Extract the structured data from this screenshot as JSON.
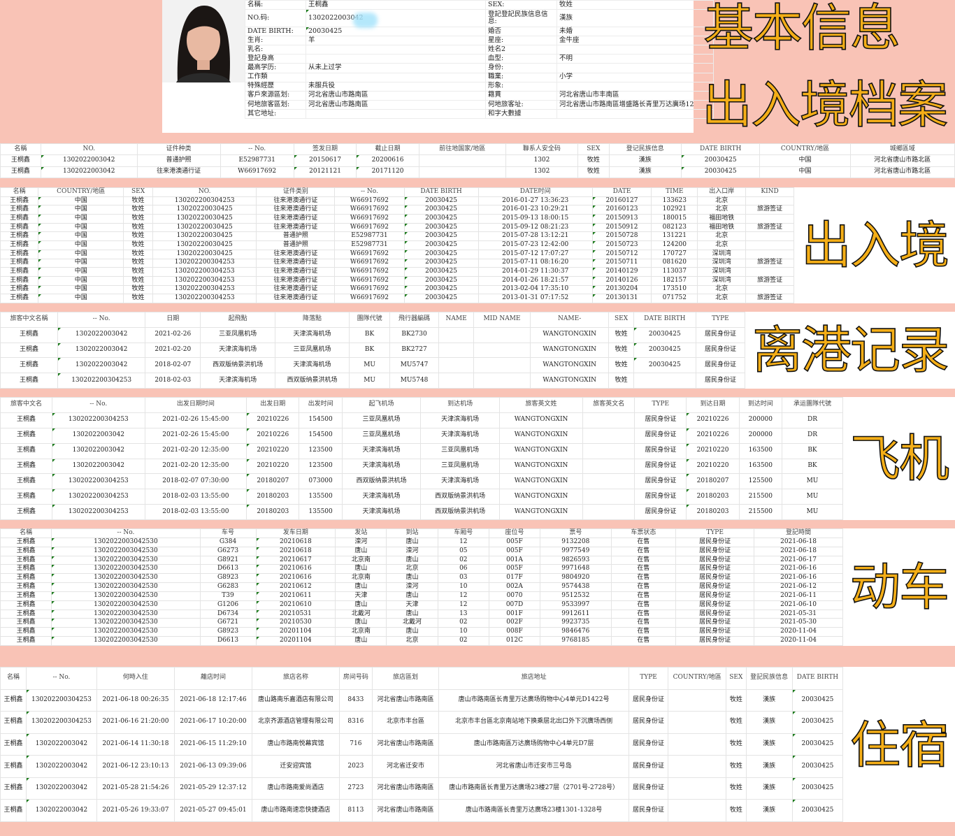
{
  "basic_info": {
    "title": "基本信息",
    "rows": [
      [
        "名稱:",
        "王桐鑫",
        "SEX:",
        "牧姓"
      ],
      [
        "NO.码:",
        "1302022003042",
        "登記登記民族信息信息:",
        "漢族"
      ],
      [
        "DATE BIRTH:",
        "20030425",
        "婚否",
        "未婚"
      ],
      [
        "生肖:",
        "羊",
        "星座:",
        "金牛座"
      ],
      [
        "乳名:",
        "",
        "姓名2",
        ""
      ],
      [
        "登記身高",
        "",
        "血型:",
        "不明"
      ],
      [
        "最高学历:",
        "从未上过学",
        "身份:",
        ""
      ],
      [
        "工作類",
        "",
        "職業:",
        "小学"
      ],
      [
        "特殊經歷",
        "未服兵役",
        "形象:",
        ""
      ],
      [
        "客戶來源區划:",
        "河北省唐山市路南區",
        "籍貫",
        "河北省唐山市丰南區"
      ],
      [
        "何地旅客區划:",
        "河北省唐山市路南區",
        "何地旅客址:",
        "河北省唐山市路南區增盛路长青里万达廣场12"
      ],
      [
        "其它地址:",
        "",
        "和字大數據",
        ""
      ]
    ]
  },
  "sections": {
    "entry_archive": {
      "title": "出入境档案",
      "headers": [
        "名稱",
        "NO.",
        "证件种类",
        "-- No.",
        "签发日期",
        "截止日期",
        "前往地国家/地區",
        "聯系人安全码",
        "SEX",
        "登记民族信息",
        "DATE BIRTH",
        "COUNTRY/地區",
        "城鄉區域"
      ],
      "rows": [
        [
          "王桐鑫",
          "1302022003042",
          "普通护照",
          "E52987731",
          "20150617",
          "20200616",
          "",
          "1302",
          "牧姓",
          "漢族",
          "20030425",
          "中国",
          "河北省唐山市路北區"
        ],
        [
          "王桐鑫",
          "1302022003042",
          "往来港澳通行证",
          "W66917692",
          "20121121",
          "20171120",
          "",
          "1302",
          "牧姓",
          "漢族",
          "20030425",
          "中国",
          "河北省唐山市路北區"
        ]
      ]
    },
    "border_crossing": {
      "title": "出入境",
      "headers": [
        "名稱",
        "COUNTRY/地區",
        "SEX",
        "NO.",
        "证件类别",
        "-- No.",
        "DATE BIRTH",
        "DATE时间",
        "DATE",
        "TIME",
        "出入口岸",
        "KIND"
      ],
      "rows": [
        [
          "王桐鑫",
          "中国",
          "牧姓",
          "130202200304253",
          "往来港澳通行证",
          "W66917692",
          "20030425",
          "2016-01-27 13:36:23",
          "20160127",
          "133623",
          "北京",
          ""
        ],
        [
          "王桐鑫",
          "中国",
          "牧姓",
          "13020220030425",
          "往来港澳通行证",
          "W66917692",
          "20030425",
          "2016-01-23 10:29:21",
          "20160123",
          "102921",
          "北京",
          "旅游签证"
        ],
        [
          "王桐鑫",
          "中国",
          "牧姓",
          "13020220030425",
          "往来港澳通行证",
          "W66917692",
          "20030425",
          "2015-09-13 18:00:15",
          "20150913",
          "180015",
          "福田地铁",
          ""
        ],
        [
          "王桐鑫",
          "中国",
          "牧姓",
          "13020220030425",
          "往来港澳通行证",
          "W66917692",
          "20030425",
          "2015-09-12 08:21:23",
          "20150912",
          "082123",
          "福田地铁",
          "旅游签证"
        ],
        [
          "王桐鑫",
          "中国",
          "牧姓",
          "13020220030425",
          "普通护照",
          "E52987731",
          "20030425",
          "2015-07-28 13:12:21",
          "20150728",
          "131221",
          "北京",
          ""
        ],
        [
          "王桐鑫",
          "中国",
          "牧姓",
          "13020220030425",
          "普通护照",
          "E52987731",
          "20030425",
          "2015-07-23 12:42:00",
          "20150723",
          "124200",
          "北京",
          ""
        ],
        [
          "王桐鑫",
          "中国",
          "牧姓",
          "13020220030425",
          "往来港澳通行证",
          "W66917692",
          "20030425",
          "2015-07-12 17:07:27",
          "20150712",
          "170727",
          "深圳湾",
          ""
        ],
        [
          "王桐鑫",
          "中国",
          "牧姓",
          "130202200304253",
          "往来港澳通行证",
          "W66917692",
          "20030425",
          "2015-07-11 08:16:20",
          "20150711",
          "081620",
          "深圳湾",
          "旅游签证"
        ],
        [
          "王桐鑫",
          "中国",
          "牧姓",
          "130202200304253",
          "往来港澳通行证",
          "W66917692",
          "20030425",
          "2014-01-29 11:30:37",
          "20140129",
          "113037",
          "深圳湾",
          ""
        ],
        [
          "王桐鑫",
          "中国",
          "牧姓",
          "130202200304253",
          "往来港澳通行证",
          "W66917692",
          "20030425",
          "2014-01-26 18:21:57",
          "20140126",
          "182157",
          "深圳湾",
          "旅游签证"
        ],
        [
          "王桐鑫",
          "中国",
          "牧姓",
          "130202200304253",
          "往来港澳通行证",
          "W66917692",
          "20030425",
          "2013-02-04 17:35:10",
          "20130204",
          "173510",
          "北京",
          ""
        ],
        [
          "王桐鑫",
          "中国",
          "牧姓",
          "130202200304253",
          "往来港澳通行证",
          "W66917692",
          "20030425",
          "2013-01-31 07:17:52",
          "20130131",
          "071752",
          "北京",
          "旅游签证"
        ]
      ]
    },
    "departures": {
      "title": "离港记录",
      "headers": [
        "旅客中文名稱",
        "-- No.",
        "日期",
        "起飛點",
        "降落點",
        "團隊代號",
        "飛行器編碼",
        "NAME",
        "MID NAME",
        "NAME-",
        "SEX",
        "DATE BIRTH",
        "TYPE"
      ],
      "rows": [
        [
          "王桐鑫",
          "1302022003042",
          "2021-02-26",
          "三亚凤凰机场",
          "天津滨海机场",
          "BK",
          "BK2730",
          "",
          "",
          "WANGTONGXIN",
          "牧姓",
          "20030425",
          "居民身份证"
        ],
        [
          "王桐鑫",
          "1302022003042",
          "2021-02-20",
          "天津滨海机场",
          "三亚凤凰机场",
          "BK",
          "BK2727",
          "",
          "",
          "WANGTONGXIN",
          "牧姓",
          "20030425",
          "居民身份证"
        ],
        [
          "王桐鑫",
          "1302022003042",
          "2018-02-07",
          "西双版纳景洪机场",
          "天津滨海机场",
          "MU",
          "MU5747",
          "",
          "",
          "WANGTONGXIN",
          "牧姓",
          "20030425",
          "居民身份证"
        ],
        [
          "王桐鑫",
          "130202200304253",
          "2018-02-03",
          "天津滨海机场",
          "西双版纳景洪机场",
          "MU",
          "MU5748",
          "",
          "",
          "WANGTONGXIN",
          "牧姓",
          "",
          "居民身份证"
        ]
      ]
    },
    "flights": {
      "title": "飞机",
      "headers": [
        "旅客中文名",
        "-- No.",
        "出发日期时间",
        "出发日期",
        "出发时间",
        "起飞机场",
        "到达机场",
        "旅客英文姓",
        "旅客英文名",
        "TYPE",
        "到达日期",
        "到达时间",
        "承运團隊代號"
      ],
      "rows": [
        [
          "王桐鑫",
          "130202200304253",
          "2021-02-26 15:45:00",
          "20210226",
          "154500",
          "三亚凤凰机场",
          "天津滨海机场",
          "WANGTONGXIN",
          "",
          "居民身份证",
          "20210226",
          "200000",
          "DR"
        ],
        [
          "王桐鑫",
          "1302022003042",
          "2021-02-26 15:45:00",
          "20210226",
          "154500",
          "三亚凤凰机场",
          "天津滨海机场",
          "WANGTONGXIN",
          "",
          "居民身份证",
          "20210226",
          "200000",
          "DR"
        ],
        [
          "王桐鑫",
          "1302022003042",
          "2021-02-20 12:35:00",
          "20210220",
          "123500",
          "天津滨海机场",
          "三亚凤凰机场",
          "WANGTONGXIN",
          "",
          "居民身份证",
          "20210220",
          "163500",
          "BK"
        ],
        [
          "王桐鑫",
          "1302022003042",
          "2021-02-20 12:35:00",
          "20210220",
          "123500",
          "天津滨海机场",
          "三亚凤凰机场",
          "WANGTONGXIN",
          "",
          "居民身份证",
          "20210220",
          "163500",
          "BK"
        ],
        [
          "王桐鑫",
          "130202200304253",
          "2018-02-07 07:30:00",
          "20180207",
          "073000",
          "西双版纳景洪机场",
          "天津滨海机场",
          "WANGTONGXIN",
          "",
          "居民身份证",
          "20180207",
          "125500",
          "MU"
        ],
        [
          "王桐鑫",
          "130202200304253",
          "2018-02-03 13:55:00",
          "20180203",
          "135500",
          "天津滨海机场",
          "西双版纳景洪机场",
          "WANGTONGXIN",
          "",
          "居民身份证",
          "20180203",
          "215500",
          "MU"
        ],
        [
          "王桐鑫",
          "130202200304253",
          "2018-02-03 13:55:00",
          "20180203",
          "135500",
          "天津滨海机场",
          "西双版纳景洪机场",
          "WANGTONGXIN",
          "",
          "居民身份证",
          "20180203",
          "215500",
          "MU"
        ]
      ]
    },
    "trains": {
      "title": "动车",
      "headers": [
        "名稱",
        "-- No.",
        "车号",
        "发车日期",
        "发站",
        "到站",
        "车厢号",
        "座位号",
        "票号",
        "车票状态",
        "TYPE",
        "登記時間"
      ],
      "rows": [
        [
          "王桐鑫",
          "1302022003042530",
          "G384",
          "20210618",
          "滦河",
          "唐山",
          "12",
          "005F",
          "9132208",
          "在售",
          "居民身份证",
          "2021-06-18"
        ],
        [
          "王桐鑫",
          "1302022003042530",
          "G6273",
          "20210618",
          "唐山",
          "滦河",
          "05",
          "005F",
          "9977549",
          "在售",
          "居民身份证",
          "2021-06-18"
        ],
        [
          "王桐鑫",
          "1302022003042530",
          "G8921",
          "20210617",
          "北京南",
          "唐山",
          "02",
          "001A",
          "9826593",
          "在售",
          "居民身份证",
          "2021-06-17"
        ],
        [
          "王桐鑫",
          "1302022003042530",
          "D6613",
          "20210616",
          "唐山",
          "北京",
          "06",
          "005F",
          "9971648",
          "在售",
          "居民身份证",
          "2021-06-16"
        ],
        [
          "王桐鑫",
          "1302022003042530",
          "G8923",
          "20210616",
          "北京南",
          "唐山",
          "03",
          "017F",
          "9804920",
          "在售",
          "居民身份证",
          "2021-06-16"
        ],
        [
          "王桐鑫",
          "1302022003042530",
          "G6283",
          "20210612",
          "唐山",
          "滦河",
          "10",
          "002A",
          "9574438",
          "在售",
          "居民身份证",
          "2021-06-12"
        ],
        [
          "王桐鑫",
          "1302022003042530",
          "T39",
          "20210611",
          "天津",
          "唐山",
          "12",
          "0070",
          "9512532",
          "在售",
          "居民身份证",
          "2021-06-11"
        ],
        [
          "王桐鑫",
          "1302022003042530",
          "G1206",
          "20210610",
          "唐山",
          "天津",
          "12",
          "007D",
          "9533997",
          "在售",
          "居民身份证",
          "2021-06-10"
        ],
        [
          "王桐鑫",
          "1302022003042530",
          "D6734",
          "20210531",
          "北戴河",
          "唐山",
          "13",
          "001F",
          "9912611",
          "在售",
          "居民身份证",
          "2021-05-31"
        ],
        [
          "王桐鑫",
          "1302022003042530",
          "G6721",
          "20210530",
          "唐山",
          "北戴河",
          "02",
          "002F",
          "9923735",
          "在售",
          "居民身份证",
          "2021-05-30"
        ],
        [
          "王桐鑫",
          "1302022003042530",
          "G8923",
          "20201104",
          "北京南",
          "唐山",
          "10",
          "008F",
          "9846476",
          "在售",
          "居民身份证",
          "2020-11-04"
        ],
        [
          "王桐鑫",
          "1302022003042530",
          "D6613",
          "20201104",
          "唐山",
          "北京",
          "02",
          "012C",
          "9768185",
          "在售",
          "居民身份证",
          "2020-11-04"
        ]
      ]
    },
    "lodging": {
      "title": "住宿",
      "headers": [
        "名稱",
        "-- No.",
        "何時入住",
        "離店时间",
        "旅店名称",
        "房间号码",
        "旅店區划",
        "旅店地址",
        "TYPE",
        "COUNTRY/地區",
        "SEX",
        "登記民族信息",
        "DATE BIRTH"
      ],
      "rows": [
        [
          "王桐鑫",
          "130202200304253",
          "2021-06-18 00:26:35",
          "2021-06-18 12:17:46",
          "唐山路南乐嘉酒店有限公司",
          "8433",
          "河北省唐山市路南區",
          "唐山市路南區长青里万达廣场购物中心4单元D1422号",
          "居民身份证",
          "",
          "牧姓",
          "漢族",
          "20030425"
        ],
        [
          "王桐鑫",
          "130202200304253",
          "2021-06-16 21:20:00",
          "2021-06-17 10:20:00",
          "北京齐源酒店管理有限公司",
          "8316",
          "北京市丰台區",
          "北京市丰台區北京南站地下换乘层北出口外下沉廣场西侧",
          "居民身份证",
          "",
          "牧姓",
          "漢族",
          "20030425"
        ],
        [
          "王桐鑫",
          "1302022003042",
          "2021-06-14 11:30:18",
          "2021-06-15 11:29:10",
          "唐山市路南悦幕宾馆",
          "716",
          "河北省唐山市路南區",
          "唐山市路南區万达廣场购物中心4单元D7层",
          "居民身份证",
          "",
          "牧姓",
          "漢族",
          "20030425"
        ],
        [
          "王桐鑫",
          "1302022003042",
          "2021-06-12 23:10:13",
          "2021-06-13 09:39:06",
          "迁安迎宾馆",
          "2023",
          "河北省迁安市",
          "河北省唐山市迁安市三号岛",
          "居民身份证",
          "",
          "牧姓",
          "漢族",
          "20030425"
        ],
        [
          "王桐鑫",
          "1302022003042",
          "2021-05-28 21:54:26",
          "2021-05-29 12:37:12",
          "唐山市路南爱尚酒店",
          "2723",
          "河北省唐山市路南區",
          "唐山市路南區长青里万达廣场23楼27层（2701号-2728号）",
          "居民身份证",
          "",
          "牧姓",
          "漢族",
          "20030425"
        ],
        [
          "王桐鑫",
          "1302022003042",
          "2021-05-26 19:33:07",
          "2021-05-27 09:45:01",
          "唐山市路南速恋快捷酒店",
          "8113",
          "河北省唐山市路南區",
          "唐山市路南區长青里万达廣场23楼1301-1328号",
          "居民身份证",
          "",
          "牧姓",
          "漢族",
          "20030425"
        ]
      ]
    }
  },
  "colors": {
    "background": "#f9c3b6",
    "title_fill": "#f4ae17",
    "redaction": "#a8e4fb"
  }
}
